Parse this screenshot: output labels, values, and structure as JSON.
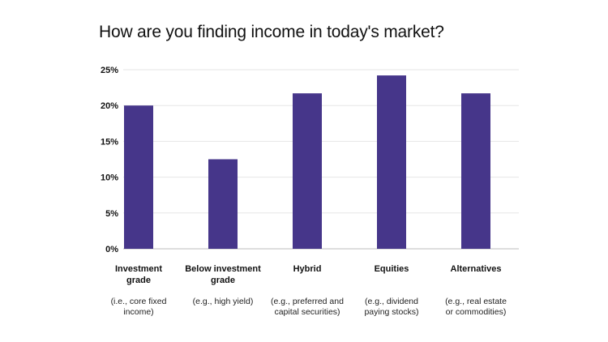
{
  "chart_data": {
    "type": "bar",
    "title": "How are you finding income in today's market?",
    "categories": [
      {
        "label": [
          "Investment",
          "grade"
        ],
        "note": [
          "(i.e., core fixed",
          "income)"
        ]
      },
      {
        "label": [
          "Below investment",
          "grade"
        ],
        "note": [
          "(e.g., high yield)"
        ]
      },
      {
        "label": [
          "Hybrid"
        ],
        "note": [
          "(e.g., preferred and",
          "capital securities)"
        ]
      },
      {
        "label": [
          "Equities"
        ],
        "note": [
          "(e.g., dividend",
          "paying stocks)"
        ]
      },
      {
        "label": [
          "Alternatives"
        ],
        "note": [
          "(e.g., real estate",
          "or commodities)"
        ]
      }
    ],
    "values": [
      20,
      12.5,
      21.7,
      24.2,
      21.7
    ],
    "ylim": [
      0,
      25
    ],
    "yticks": [
      "0%",
      "5%",
      "10%",
      "15%",
      "20%",
      "25%"
    ],
    "grid": true,
    "bar_color": "#46368a",
    "grid_color": "#e6e6e6",
    "axis_color": "#bdbdbd"
  }
}
